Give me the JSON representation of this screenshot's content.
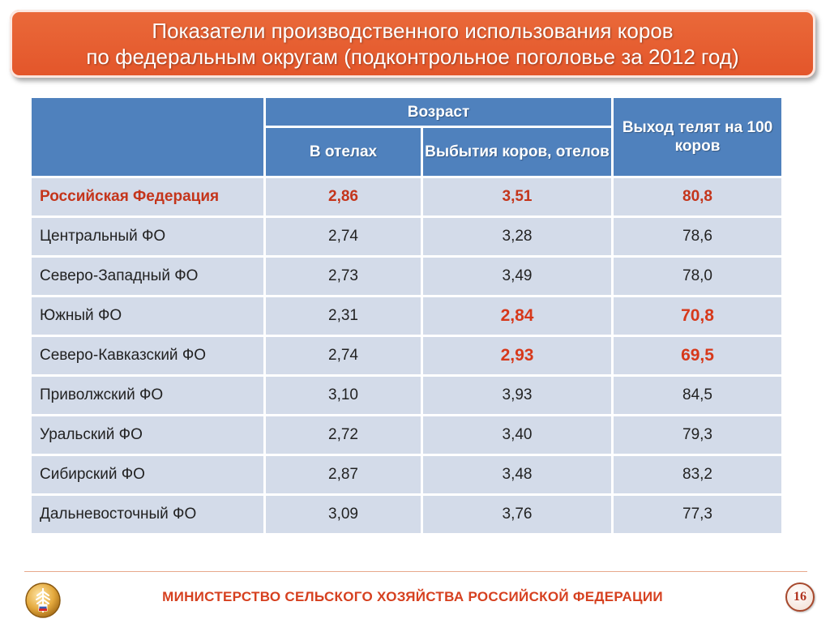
{
  "title": {
    "line1": "Показатели производственного использования коров",
    "line2": "по федеральным округам (подконтрольное поголовье за 2012 год)"
  },
  "table": {
    "header": {
      "age_group": "Возраст",
      "col_calving": "В отелах",
      "col_disposal": "Выбытия коров, отелов",
      "col_calves": "Выход телят на 100 коров"
    },
    "rows": [
      {
        "region": "Российская Федерация",
        "calving": "2,86",
        "disposal": "3,51",
        "calves": "80,8"
      },
      {
        "region": "Центральный ФО",
        "calving": "2,74",
        "disposal": "3,28",
        "calves": "78,6"
      },
      {
        "region": "Северо-Западный ФО",
        "calving": "2,73",
        "disposal": "3,49",
        "calves": "78,0"
      },
      {
        "region": "Южный ФО",
        "calving": "2,31",
        "disposal": "2,84",
        "calves": "70,8"
      },
      {
        "region": "Северо-Кавказский ФО",
        "calving": "2,74",
        "disposal": "2,93",
        "calves": "69,5"
      },
      {
        "region": "Приволжский ФО",
        "calving": "3,10",
        "disposal": "3,93",
        "calves": "84,5"
      },
      {
        "region": "Уральский ФО",
        "calving": "2,72",
        "disposal": "3,40",
        "calves": "79,3"
      },
      {
        "region": "Сибирский ФО",
        "calving": "2,87",
        "disposal": "3,48",
        "calves": "83,2"
      },
      {
        "region": "Дальневосточный ФО",
        "calving": "3,09",
        "disposal": "3,76",
        "calves": "77,3"
      }
    ]
  },
  "footer": {
    "ministry": "МИНИСТЕРСТВО СЕЛЬСКОГО ХОЗЯЙСТВА РОССИЙСКОЙ ФЕДЕРАЦИИ",
    "page_number": "16",
    "logo_icon": "wheat-emblem-icon"
  },
  "colors": {
    "banner": "#e3552a",
    "header": "#4f81bd",
    "row": "#d3dbe9",
    "highlight": "#d7381a"
  }
}
